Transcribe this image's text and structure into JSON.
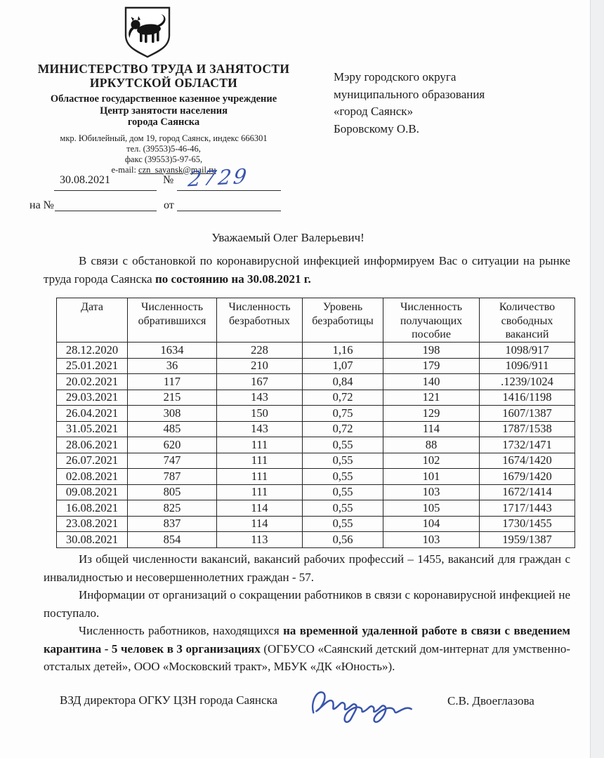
{
  "colors": {
    "paper": "#fdfdfd",
    "margin_strip": "#eef0f2",
    "ink": "#1c1c1c",
    "handwriting_blue": "#3a55ac"
  },
  "header": {
    "ministry_line1": "МИНИСТЕРСТВО ТРУДА И ЗАНЯТОСТИ",
    "ministry_line2": "ИРКУТСКОЙ ОБЛАСТИ",
    "org_line1": "Областное государственное казенное учреждение",
    "org_line2": "Центр занятости населения",
    "org_line3": "города Саянска",
    "address": "мкр. Юбилейный,  дом 19, город Саянск, индекс 666301",
    "phone": "тел. (39553)5-46-46,",
    "fax": "факс (39553)5-97-65,",
    "email_label": "e-mail: ",
    "email": "czn_sayansk@mail.ru",
    "coat_of_arms": "irkutsk-oblast-babr-coat-of-arms"
  },
  "reference": {
    "date_value": "30.08.2021",
    "number_sign": "№",
    "number_value": "2729",
    "reply_label": "на №",
    "from_label": "от"
  },
  "recipient": {
    "lines": [
      "Мэру городского округа",
      "муниципального образования",
      "«город Саянск»",
      "Боровскому О.В."
    ]
  },
  "salutation": "Уважаемый Олег Валерьевич!",
  "intro": {
    "normal": "В  связи с обстановкой по коронавирусной инфекцией информируем Вас о ситуации на рынке труда  города Саянска ",
    "bold": "по состоянию на 30.08.2021 г."
  },
  "table": {
    "headers": [
      "Дата",
      "Численность обратившихся",
      "Численность безработных",
      "Уровень безработицы",
      "Численность получающих пособие",
      "Количество свободных вакансий"
    ],
    "rows": [
      [
        "28.12.2020",
        "1634",
        "228",
        "1,16",
        "198",
        "1098/917"
      ],
      [
        "25.01.2021",
        "36",
        "210",
        "1,07",
        "179",
        "1096/911"
      ],
      [
        "20.02.2021",
        "117",
        "167",
        "0,84",
        "140",
        ".1239/1024"
      ],
      [
        "29.03.2021",
        "215",
        "143",
        "0,72",
        "121",
        "1416/1198"
      ],
      [
        "26.04.2021",
        "308",
        "150",
        "0,75",
        "129",
        "1607/1387"
      ],
      [
        "31.05.2021",
        "485",
        "143",
        "0,72",
        "114",
        "1787/1538"
      ],
      [
        "28.06.2021",
        "620",
        "111",
        "0,55",
        "88",
        "1732/1471"
      ],
      [
        "26.07.2021",
        "747",
        "111",
        "0,55",
        "102",
        "1674/1420"
      ],
      [
        "02.08.2021",
        "787",
        "111",
        "0,55",
        "101",
        "1679/1420"
      ],
      [
        "09.08.2021",
        "805",
        "111",
        "0,55",
        "103",
        "1672/1414"
      ],
      [
        "16.08.2021",
        "825",
        "114",
        "0,55",
        "105",
        "1717/1443"
      ],
      [
        "23.08.2021",
        "837",
        "114",
        "0,55",
        "104",
        "1730/1455"
      ],
      [
        "30.08.2021",
        "854",
        "113",
        "0,56",
        "103",
        "1959/1387"
      ]
    ]
  },
  "paragraphs": [
    {
      "pre": "Из общей численности вакансий, вакансий  рабочих профессий – 1455, вакансий для граждан с инвалидностью и  несовершеннолетних граждан - 57.",
      "bold": "",
      "post": ""
    },
    {
      "pre": "Информации от организаций о сокращении работников в связи с коронавирусной инфекцией не поступало.",
      "bold": "",
      "post": ""
    },
    {
      "pre": "Численность работников, находящихся ",
      "bold": "на временной удаленной работе в связи с введением карантина - 5 человек в 3 организациях",
      "post": " (ОГБУСО «Саянский детский дом-интернат для умственно-отсталых детей», ООО «Московский тракт», МБУК «ДК «Юность»)."
    }
  ],
  "signature": {
    "left_text": "ВЗД  директора ОГКУ ЦЗН города Саянска",
    "right_text": "С.В. Двоеглазова",
    "handwriting": "handwritten-signature"
  }
}
